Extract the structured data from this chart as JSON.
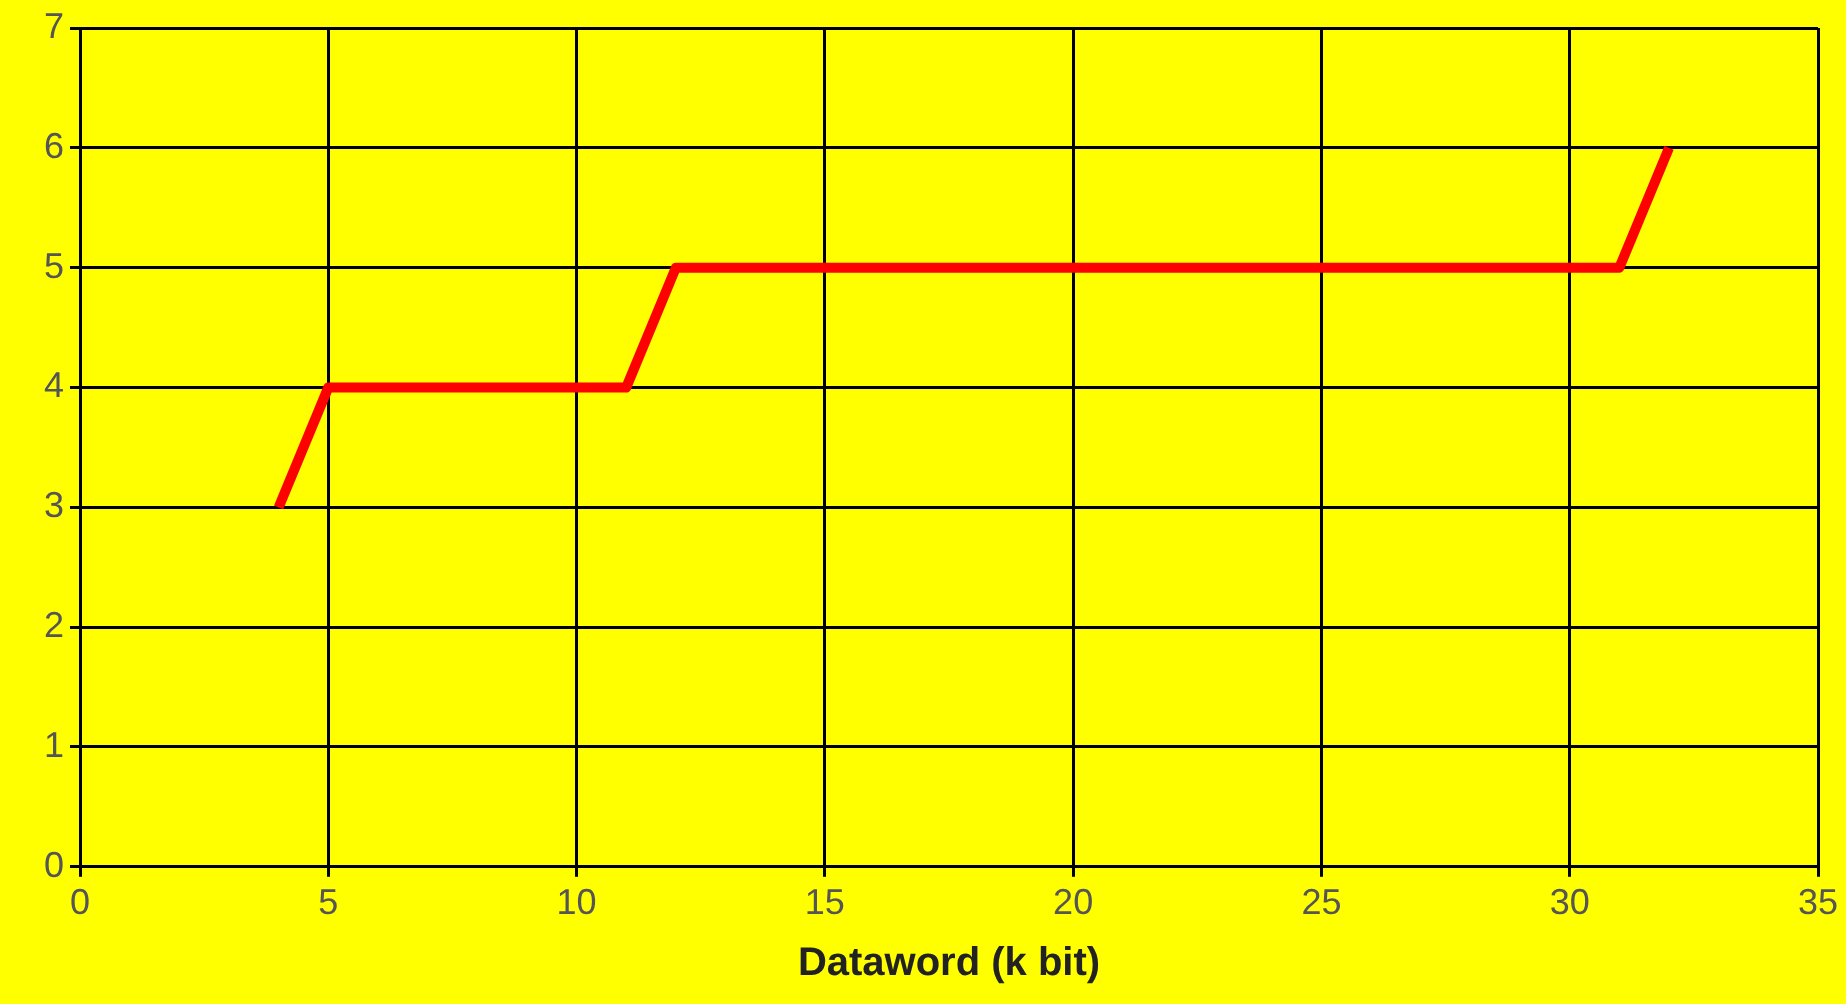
{
  "chart_data": {
    "type": "line",
    "xlabel": "Dataword (k bit)",
    "x": [
      4,
      5,
      11,
      12,
      31,
      32
    ],
    "series": [
      {
        "color": "#ff0000",
        "values": [
          3,
          4,
          4,
          5,
          5,
          6
        ]
      }
    ],
    "xlim": [
      0,
      35
    ],
    "xticks": [
      0,
      5,
      10,
      15,
      20,
      25,
      30,
      35
    ],
    "ylim": [
      0,
      7
    ],
    "yticks": [
      0,
      1,
      2,
      3,
      4,
      5,
      6,
      7
    ],
    "grid": true,
    "legend": false,
    "marker": "none",
    "line_style": "solid"
  }
}
